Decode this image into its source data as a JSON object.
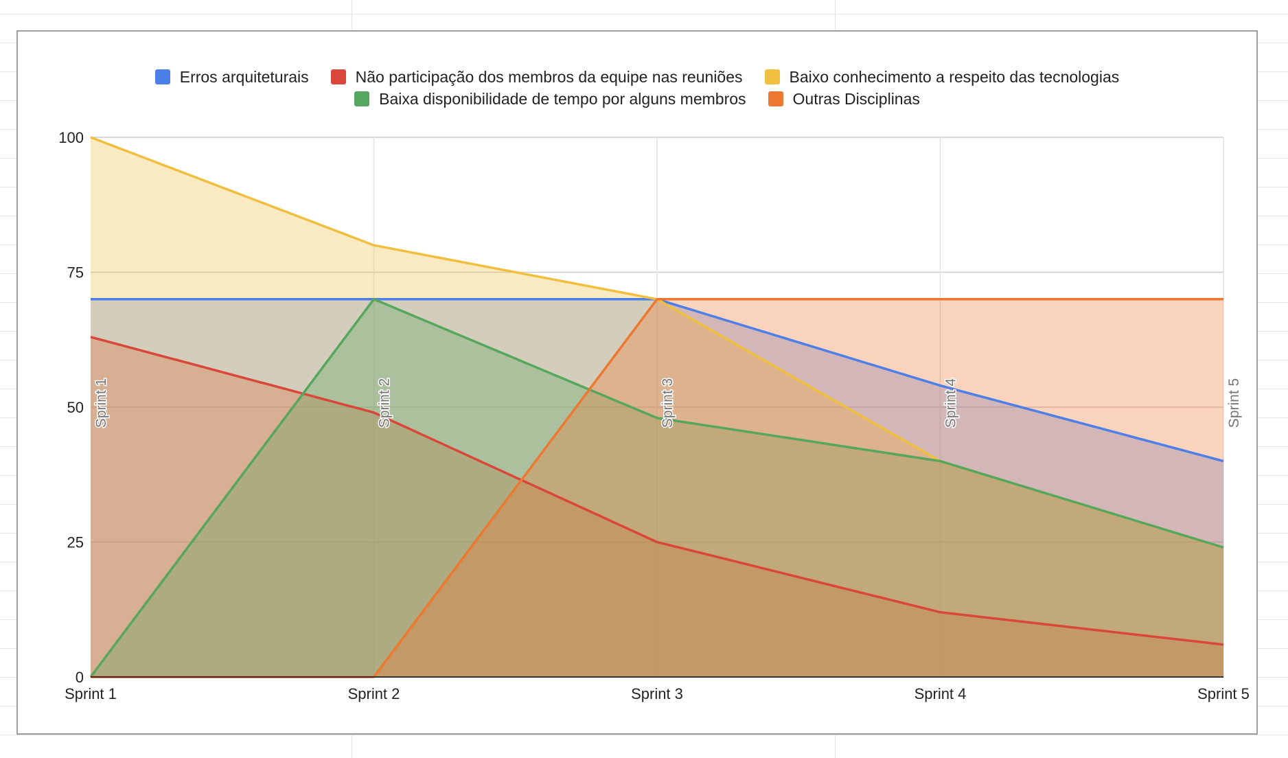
{
  "chart_data": {
    "type": "area",
    "title": "",
    "xlabel": "",
    "ylabel": "",
    "categories": [
      "Sprint 1",
      "Sprint 2",
      "Sprint 3",
      "Sprint 4",
      "Sprint 5"
    ],
    "ylim": [
      0,
      100
    ],
    "yticks": [
      0,
      25,
      50,
      75,
      100
    ],
    "grid": true,
    "legend_position": "top",
    "series": [
      {
        "name": "Erros arquiteturais",
        "color": "#4d7fe8",
        "values": [
          70,
          70,
          70,
          54,
          40
        ]
      },
      {
        "name": "Não participação dos membros da equipe nas reuniões",
        "color": "#d9473a",
        "values": [
          63,
          49,
          25,
          12,
          6
        ]
      },
      {
        "name": "Baixo conhecimento a respeito das tecnologias",
        "color": "#f1bf3f",
        "values": [
          100,
          80,
          70,
          40,
          24
        ]
      },
      {
        "name": "Baixa disponibilidade de tempo por alguns membros",
        "color": "#57a65d",
        "values": [
          0,
          70,
          48,
          40,
          24
        ]
      },
      {
        "name": "Outras Disciplinas",
        "color": "#ee7732",
        "values": [
          0,
          0,
          70,
          70,
          70
        ]
      }
    ],
    "annotations": [
      "Sprint 1",
      "Sprint 2",
      "Sprint 3",
      "Sprint 4",
      "Sprint 5"
    ]
  }
}
